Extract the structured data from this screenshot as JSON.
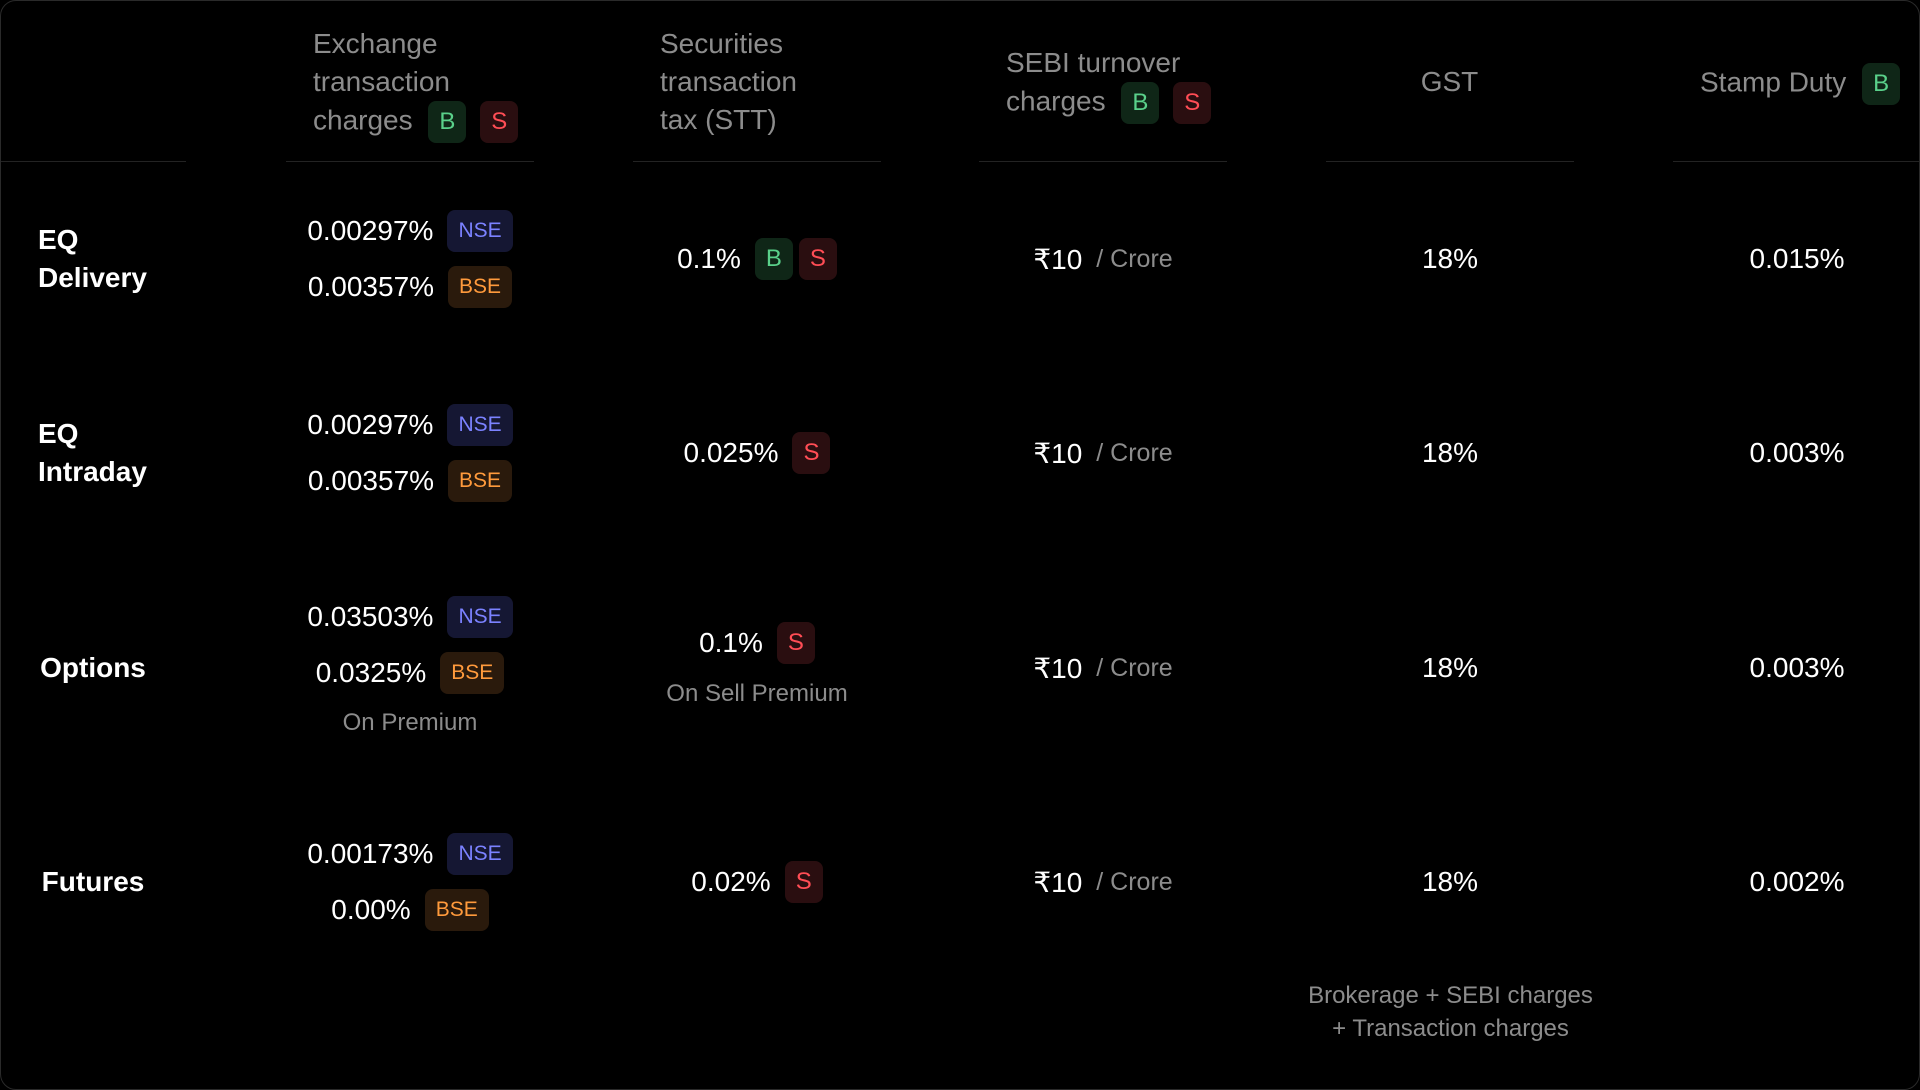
{
  "headers": {
    "exchange": [
      "Exchange",
      "transaction",
      "charges"
    ],
    "stt": [
      "Securities",
      "transaction",
      "tax (STT)"
    ],
    "sebi": [
      "SEBI turnover",
      "charges"
    ],
    "gst": "GST",
    "stamp": "Stamp Duty"
  },
  "badges": {
    "buy": "B",
    "sell": "S",
    "nse": "NSE",
    "bse": "BSE"
  },
  "rows": [
    {
      "label": [
        "EQ",
        "Delivery"
      ],
      "nse": "0.00297%",
      "bse": "0.00357%",
      "exchange_note": "",
      "stt": "0.1%",
      "stt_note": "",
      "sebi": "₹10",
      "sebi_unit": "/ Crore",
      "gst": "18%",
      "stamp": "0.015%"
    },
    {
      "label": [
        "EQ",
        "Intraday"
      ],
      "nse": "0.00297%",
      "bse": "0.00357%",
      "exchange_note": "",
      "stt": "0.025%",
      "stt_note": "",
      "sebi": "₹10",
      "sebi_unit": "/ Crore",
      "gst": "18%",
      "stamp": "0.003%"
    },
    {
      "label": [
        "Options"
      ],
      "nse": "0.03503%",
      "bse": "0.0325%",
      "exchange_note": "On Premium",
      "stt": "0.1%",
      "stt_note": "On Sell Premium",
      "sebi": "₹10",
      "sebi_unit": "/ Crore",
      "gst": "18%",
      "stamp": "0.003%"
    },
    {
      "label": [
        "Futures"
      ],
      "nse": "0.00173%",
      "bse": "0.00%",
      "exchange_note": "",
      "stt": "0.02%",
      "stt_note": "",
      "sebi": "₹10",
      "sebi_unit": "/ Crore",
      "gst": "18%",
      "stamp": "0.002%"
    }
  ],
  "footnote": [
    "Brokerage + SEBI charges",
    "+ Transaction charges"
  ],
  "colors": {
    "buy": "#5ad08a",
    "sell": "#ff4d55",
    "nse": "#7b82ff",
    "bse": "#ff9a3c",
    "muted": "#8c8c8c"
  }
}
